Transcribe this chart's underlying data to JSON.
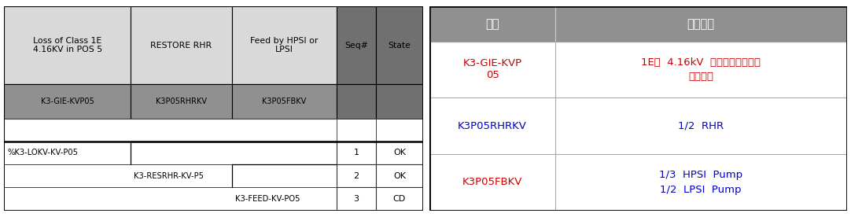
{
  "left_panel": {
    "col_headers": [
      "Loss of Class 1E\n4.16KV in POS 5",
      "RESTORE RHR",
      "Feed by HPSI or\nLPSI",
      "Seq#",
      "State"
    ],
    "header_bg": "#d9d9d9",
    "seq_state_bg": "#707070",
    "row2_bg": "#909090",
    "row2_texts": [
      "K3-GIE-KVP05",
      "K3P05RHRKV",
      "K3P05FBKV"
    ],
    "et_labels": [
      "%K3-LOKV-KV-P05",
      "K3-RESRHR-KV-P5",
      "K3-FEED-KV-PO5"
    ],
    "et_seqs": [
      "1",
      "2",
      "3"
    ],
    "et_states": [
      "OK",
      "OK",
      "CD"
    ]
  },
  "right_panel": {
    "header_bg": "#909090",
    "col1_header": "표제",
    "col2_header": "성공기준",
    "rows": [
      {
        "col1": "K3-GIE-KVP\n05",
        "col1_color": "#cc0000",
        "col2_line1": "1E급  4.16kV  교류모선상실사고",
        "col2_line2": "초기사건",
        "col2_color": "#cc0000"
      },
      {
        "col1": "K3P05RHRKV",
        "col1_color": "#0000cc",
        "col2_line1": "1/2  RHR",
        "col2_line2": "",
        "col2_color": "#0000cc"
      },
      {
        "col1": "K3P05FBKV",
        "col1_color": "#cc0000",
        "col2_line1": "1/3  HPSI  Pump",
        "col2_line2": "1/2  LPSI  Pump",
        "col2_color": "#0000cc"
      }
    ]
  },
  "fig_width": 10.82,
  "fig_height": 2.76,
  "dpi": 100
}
